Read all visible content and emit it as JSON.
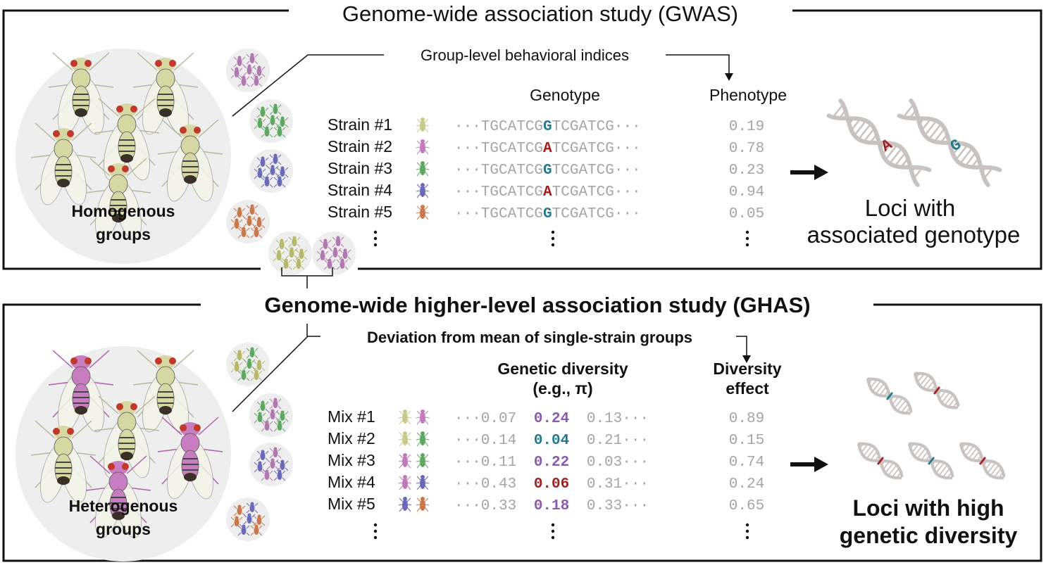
{
  "gwas": {
    "title": "Genome-wide association study (GWAS)",
    "group_label_1": "Homogenous",
    "group_label_2": "groups",
    "index_label": "Group-level behavioral indices",
    "col_genotype": "Genotype",
    "col_phenotype": "Phenotype",
    "seq_prefix": "TGCATCG",
    "seq_suffix": "TCGATCG",
    "dots": "···",
    "strains": [
      {
        "label": "Strain #1",
        "allele": "G",
        "phenotype": "0.19",
        "fly_color": "#c9c98a"
      },
      {
        "label": "Strain #2",
        "allele": "A",
        "phenotype": "0.78",
        "fly_color": "#c07ab8"
      },
      {
        "label": "Strain #3",
        "allele": "G",
        "phenotype": "0.23",
        "fly_color": "#5fa864"
      },
      {
        "label": "Strain #4",
        "allele": "A",
        "phenotype": "0.94",
        "fly_color": "#6a6ab8"
      },
      {
        "label": "Strain #5",
        "allele": "G",
        "phenotype": "0.05",
        "fly_color": "#c8784a"
      }
    ],
    "result_line_1": "Loci with",
    "result_line_2": "associated genotype",
    "dna_allele_a": "A",
    "dna_allele_g": "G"
  },
  "ghas": {
    "title": "Genome-wide higher-level association study (GHAS)",
    "group_label_1": "Heterogenous",
    "group_label_2": "groups",
    "index_label": "Deviation from mean of single-strain groups",
    "col_diversity_1": "Genetic diversity",
    "col_diversity_2": "(e.g., π)",
    "col_effect_1": "Diversity",
    "col_effect_2": "effect",
    "mixes": [
      {
        "label": "Mix #1",
        "left": "0.07",
        "center": "0.24",
        "right": "0.13",
        "effect": "0.89",
        "tone": "purple",
        "fly_a": "#c9c98a",
        "fly_b": "#c07ab8"
      },
      {
        "label": "Mix #2",
        "left": "0.14",
        "center": "0.04",
        "right": "0.21",
        "effect": "0.15",
        "tone": "teal",
        "fly_a": "#c9c98a",
        "fly_b": "#5fa864"
      },
      {
        "label": "Mix #3",
        "left": "0.11",
        "center": "0.22",
        "right": "0.03",
        "effect": "0.74",
        "tone": "purple",
        "fly_a": "#c07ab8",
        "fly_b": "#5fa864"
      },
      {
        "label": "Mix #4",
        "left": "0.43",
        "center": "0.06",
        "right": "0.31",
        "effect": "0.24",
        "tone": "red",
        "fly_a": "#c07ab8",
        "fly_b": "#6a6ab8"
      },
      {
        "label": "Mix #5",
        "left": "0.33",
        "center": "0.18",
        "right": "0.33",
        "effect": "0.65",
        "tone": "purple",
        "fly_a": "#6a6ab8",
        "fly_b": "#c8784a"
      }
    ],
    "result_line_1": "Loci with high",
    "result_line_2": "genetic diversity"
  },
  "colors": {
    "allele_G": "#1f7a8c",
    "allele_A": "#a31f1f",
    "purple": "#8a5ab0",
    "teal": "#1f7a8c",
    "red": "#a31f1f",
    "grey_text": "#a8a4a2",
    "dna": "#c8c3c0",
    "group_bg": "#eeeeee",
    "fly_body": "#d7d7a4",
    "fly_pink": "#c87dc0"
  },
  "small_group_colors": [
    "#b07ab0",
    "#5fa864",
    "#6a6ab8",
    "#c8784a"
  ]
}
